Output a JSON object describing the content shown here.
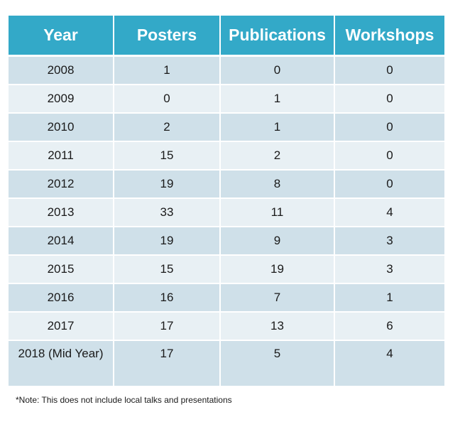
{
  "table": {
    "headers": [
      "Year",
      "Posters",
      "Publications",
      "Workshops"
    ],
    "rows": [
      [
        "2008",
        "1",
        "0",
        "0"
      ],
      [
        "2009",
        "0",
        "1",
        "0"
      ],
      [
        "2010",
        "2",
        "1",
        "0"
      ],
      [
        "2011",
        "15",
        "2",
        "0"
      ],
      [
        "2012",
        "19",
        "8",
        "0"
      ],
      [
        "2013",
        "33",
        "11",
        "4"
      ],
      [
        "2014",
        "19",
        "9",
        "3"
      ],
      [
        "2015",
        "15",
        "19",
        "3"
      ],
      [
        "2016",
        "16",
        "7",
        "1"
      ],
      [
        "2017",
        "17",
        "13",
        "6"
      ],
      [
        "2018 (Mid Year)",
        "17",
        "5",
        "4"
      ]
    ]
  },
  "note": "*Note: This does not include local talks and presentations",
  "colors": {
    "header_bg": "#33a9c8",
    "row_dark": "#cfe0e9",
    "row_light": "#e8f0f4"
  }
}
